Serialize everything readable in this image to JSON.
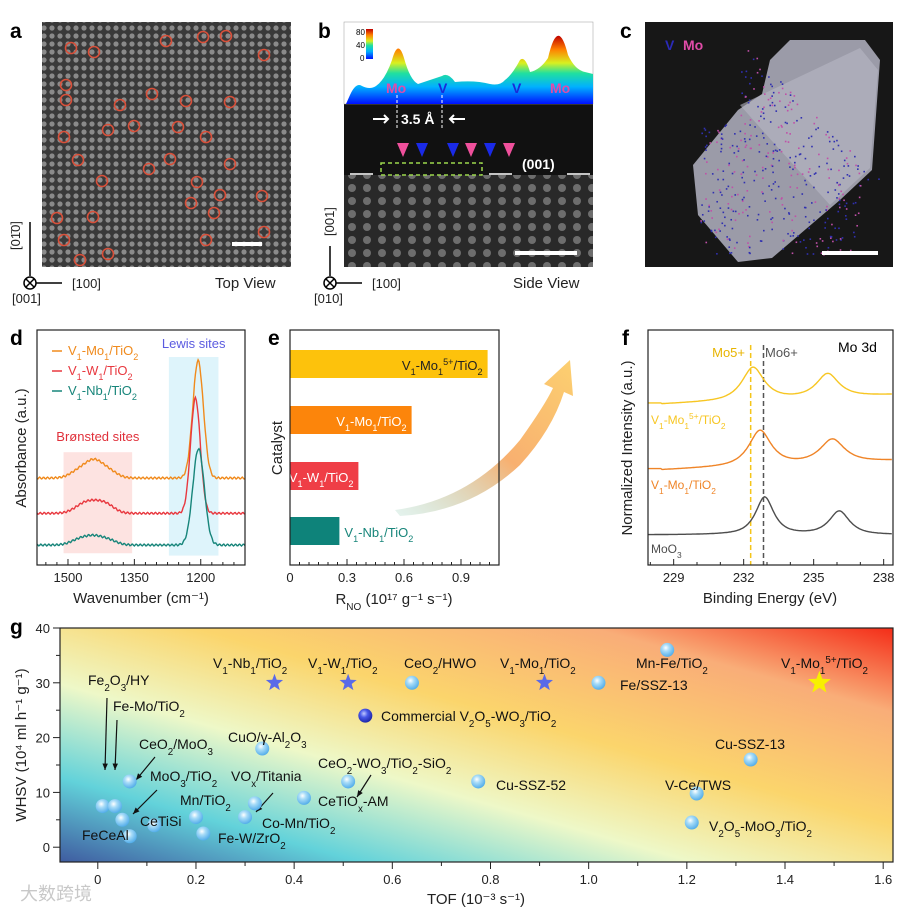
{
  "panels": {
    "a": {
      "letter": "a",
      "view": "Top View",
      "axis_vertical": "[01̄0]",
      "axis_horizontal": "[100]",
      "axis_out": "[001]"
    },
    "b": {
      "letter": "b",
      "view": "Side View",
      "axis_vertical": "[001]",
      "axis_horizontal": "[100]",
      "axis_out": "[010]",
      "colorbar_ticks": [
        "80",
        "40",
        "0"
      ],
      "profile_labels": [
        "Mo",
        "V",
        "V",
        "Mo"
      ],
      "spacing": "3.5 Å",
      "facet": "(001)"
    },
    "c": {
      "letter": "c",
      "legend": [
        "V",
        "Mo"
      ]
    },
    "d": {
      "letter": "d"
    },
    "e": {
      "letter": "e"
    },
    "f": {
      "letter": "f"
    },
    "g": {
      "letter": "g"
    }
  },
  "watermark": "大数跨境",
  "chart_data": [
    {
      "id": "d",
      "type": "line",
      "xlabel": "Wavenumber (cm⁻¹)",
      "ylabel": "Absorbance (a.u.)",
      "xlim": [
        1570,
        1100
      ],
      "ylim": [
        0,
        1
      ],
      "xticks": [
        1500,
        1350,
        1200
      ],
      "regions": [
        {
          "label": "Brønsted sites",
          "from": 1510,
          "to": 1355,
          "color": "#fde3e1",
          "label_color": "#e0303a"
        },
        {
          "label": "Lewis sites",
          "from": 1272,
          "to": 1160,
          "color": "#def4fb",
          "label_color": "#5b5be0"
        }
      ],
      "series": [
        {
          "name": "V1-Mo1/TiO2",
          "color": "#f08a1c",
          "baseline": 0.37,
          "peaks": [
            [
              1440,
              0.07,
              20
            ],
            [
              1475,
              0.03,
              20
            ],
            [
              1405,
              0.025,
              18
            ],
            [
              1206,
              0.5,
              12
            ]
          ]
        },
        {
          "name": "V1-W1/TiO2",
          "color": "#e8383f",
          "baseline": 0.22,
          "peaks": [
            [
              1440,
              0.045,
              25
            ],
            [
              1470,
              0.02,
              20
            ],
            [
              1410,
              0.02,
              18
            ],
            [
              1212,
              0.49,
              11
            ]
          ]
        },
        {
          "name": "V1-Nb1/TiO2",
          "color": "#17857a",
          "baseline": 0.085,
          "peaks": [
            [
              1440,
              0.035,
              22
            ],
            [
              1475,
              0.02,
              20
            ],
            [
              1405,
              0.015,
              18
            ],
            [
              1205,
              0.41,
              13
            ]
          ]
        }
      ]
    },
    {
      "id": "e",
      "type": "bar",
      "orientation": "horizontal",
      "xlabel_main": "R",
      "xlabel_sub": "NO",
      "xlabel_unit": " (10¹⁷ g⁻¹ s⁻¹)",
      "ylabel": "Catalyst",
      "xlim": [
        0,
        1.1
      ],
      "xticks": [
        "0",
        "0.3",
        "0.6",
        "0.9"
      ],
      "categories": [
        "V1-Mo1^5+/TiO2",
        "V1-Mo1/TiO2",
        "V1-W1/TiO2",
        "V1-Nb1/TiO2"
      ],
      "values": [
        1.04,
        0.64,
        0.36,
        0.26
      ],
      "colors": [
        "#fdc20c",
        "#fc850b",
        "#ef3e46",
        "#0e837a"
      ],
      "label_colors": [
        "#222222",
        "#ffffff",
        "#ffffff",
        "#17857a"
      ]
    },
    {
      "id": "f",
      "type": "line",
      "xlabel": "Binding Energy (eV)",
      "ylabel": "Normalized Intensity (a.u.)",
      "title": "Mo 3d",
      "xlim": [
        227.9,
        238.4
      ],
      "ylim": [
        0,
        1
      ],
      "xticks": [
        229,
        232,
        235,
        238
      ],
      "reference_lines": [
        {
          "label": "Mo5+",
          "x": 232.3,
          "color": "#f5c518"
        },
        {
          "label": "Mo6+",
          "x": 232.85,
          "color": "#555555"
        }
      ],
      "series": [
        {
          "name": "V1-Mo1^5+/TiO2",
          "color": "#f7c623",
          "baseline": 0.69,
          "peaks": [
            [
              232.4,
              0.14,
              0.55
            ],
            [
              235.6,
              0.1,
              0.55
            ]
          ]
        },
        {
          "name": "V1-Mo1/TiO2",
          "color": "#ef8427",
          "baseline": 0.41,
          "peaks": [
            [
              232.7,
              0.15,
              0.55
            ],
            [
              235.8,
              0.1,
              0.6
            ]
          ]
        },
        {
          "name": "MoO3",
          "color": "#4d4d4d",
          "baseline": 0.128,
          "peaks": [
            [
              232.9,
              0.16,
              0.45
            ],
            [
              236.1,
              0.1,
              0.5
            ]
          ]
        }
      ]
    },
    {
      "id": "g",
      "type": "scatter",
      "xlabel": "TOF (10⁻³ s⁻¹)",
      "ylabel": "WHSV (10⁴ ml h⁻¹ g⁻¹)",
      "xlim": [
        -0.077,
        1.62
      ],
      "ylim": [
        -2.7,
        40
      ],
      "xticks": [
        "0",
        "0.2",
        "0.4",
        "0.6",
        "0.8",
        "1.0",
        "1.2",
        "1.4",
        "1.6"
      ],
      "yticks": [
        "0",
        "10",
        "20",
        "30",
        "40"
      ],
      "points": [
        {
          "name": "V1-Nb1/TiO2",
          "tof": 0.36,
          "whsv": 30,
          "marker": "blue-star"
        },
        {
          "name": "V1-W1/TiO2",
          "tof": 0.51,
          "whsv": 30,
          "marker": "blue-star"
        },
        {
          "name": "CeO2/HWO",
          "tof": 0.64,
          "whsv": 30,
          "marker": "sphere"
        },
        {
          "name": "V1-Mo1/TiO2",
          "tof": 0.91,
          "whsv": 30,
          "marker": "blue-star"
        },
        {
          "name": "Mn-Fe/TiO2",
          "tof": 1.16,
          "whsv": 36,
          "marker": "sphere"
        },
        {
          "name": "V1-Mo1^5+/TiO2",
          "tof": 1.47,
          "whsv": 30,
          "marker": "yellow-star"
        },
        {
          "name": "Fe2O3/HY",
          "tof": 0.01,
          "whsv": 7.5,
          "marker": "sphere"
        },
        {
          "name": "Fe/SSZ-13",
          "tof": 1.02,
          "whsv": 30,
          "marker": "sphere"
        },
        {
          "name": "Fe-Mo/TiO2",
          "tof": 0.035,
          "whsv": 7.5,
          "marker": "sphere"
        },
        {
          "name": "Commercial V2O5-WO3/TiO2",
          "tof": 0.545,
          "whsv": 24,
          "marker": "dark-sphere"
        },
        {
          "name": "CuO/γ-Al2O3",
          "tof": 0.335,
          "whsv": 18,
          "marker": "sphere"
        },
        {
          "name": "CeO2/MoO3",
          "tof": 0.065,
          "whsv": 12,
          "marker": "sphere"
        },
        {
          "name": "Cu-SSZ-13",
          "tof": 1.33,
          "whsv": 16,
          "marker": "sphere"
        },
        {
          "name": "CeO2-WO3/TiO2-SiO2",
          "tof": 0.51,
          "whsv": 12,
          "marker": "sphere"
        },
        {
          "name": "MoO3/TiO2",
          "tof": 0.05,
          "whsv": 5,
          "marker": "sphere"
        },
        {
          "name": "VOx/Titania",
          "tof": 0.32,
          "whsv": 8,
          "marker": "sphere"
        },
        {
          "name": "V-Ce/TWS",
          "tof": 1.22,
          "whsv": 9.8,
          "marker": "sphere"
        },
        {
          "name": "Cu-SSZ-52",
          "tof": 0.775,
          "whsv": 12,
          "marker": "sphere"
        },
        {
          "name": "Mn/TiO2",
          "tof": 0.2,
          "whsv": 5.5,
          "marker": "sphere"
        },
        {
          "name": "CeTiOx-AM",
          "tof": 0.42,
          "whsv": 9,
          "marker": "sphere"
        },
        {
          "name": "CeTiSi",
          "tof": 0.115,
          "whsv": 4,
          "marker": "sphere"
        },
        {
          "name": "Co-Mn/TiO2",
          "tof": 0.3,
          "whsv": 5.5,
          "marker": "sphere"
        },
        {
          "name": "V2O5-MoO3/TiO2",
          "tof": 1.21,
          "whsv": 4.5,
          "marker": "sphere"
        },
        {
          "name": "FeCeAl",
          "tof": 0.065,
          "whsv": 2,
          "marker": "sphere"
        },
        {
          "name": "Fe-W/ZrO2",
          "tof": 0.215,
          "whsv": 2.5,
          "marker": "sphere"
        }
      ]
    }
  ]
}
